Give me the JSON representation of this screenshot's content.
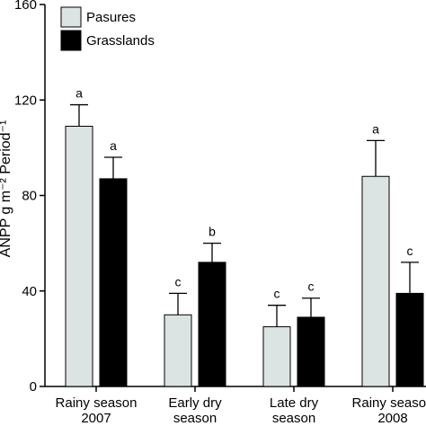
{
  "chart_data": {
    "type": "bar",
    "ylabel": "ANPP g m⁻² Period⁻¹",
    "ylim": [
      0,
      160
    ],
    "yticks": [
      0,
      40,
      80,
      120,
      160
    ],
    "categories": [
      [
        "Rainy season",
        "2007"
      ],
      [
        "Early dry",
        "season"
      ],
      [
        "Late dry",
        "season"
      ],
      [
        "Rainy season",
        "2008"
      ]
    ],
    "series": [
      {
        "name": "Pasures",
        "color": "#dce3e3",
        "values": [
          109,
          30,
          25,
          88
        ],
        "errors": [
          9,
          9,
          9,
          15
        ],
        "letters": [
          "a",
          "c",
          "c",
          "a"
        ]
      },
      {
        "name": "Grasslands",
        "color": "#000000",
        "values": [
          87,
          52,
          29,
          39
        ],
        "errors": [
          9,
          8,
          8,
          13
        ],
        "letters": [
          "a",
          "b",
          "c",
          "c"
        ]
      }
    ],
    "legend_position": "top-left",
    "grid": false
  }
}
